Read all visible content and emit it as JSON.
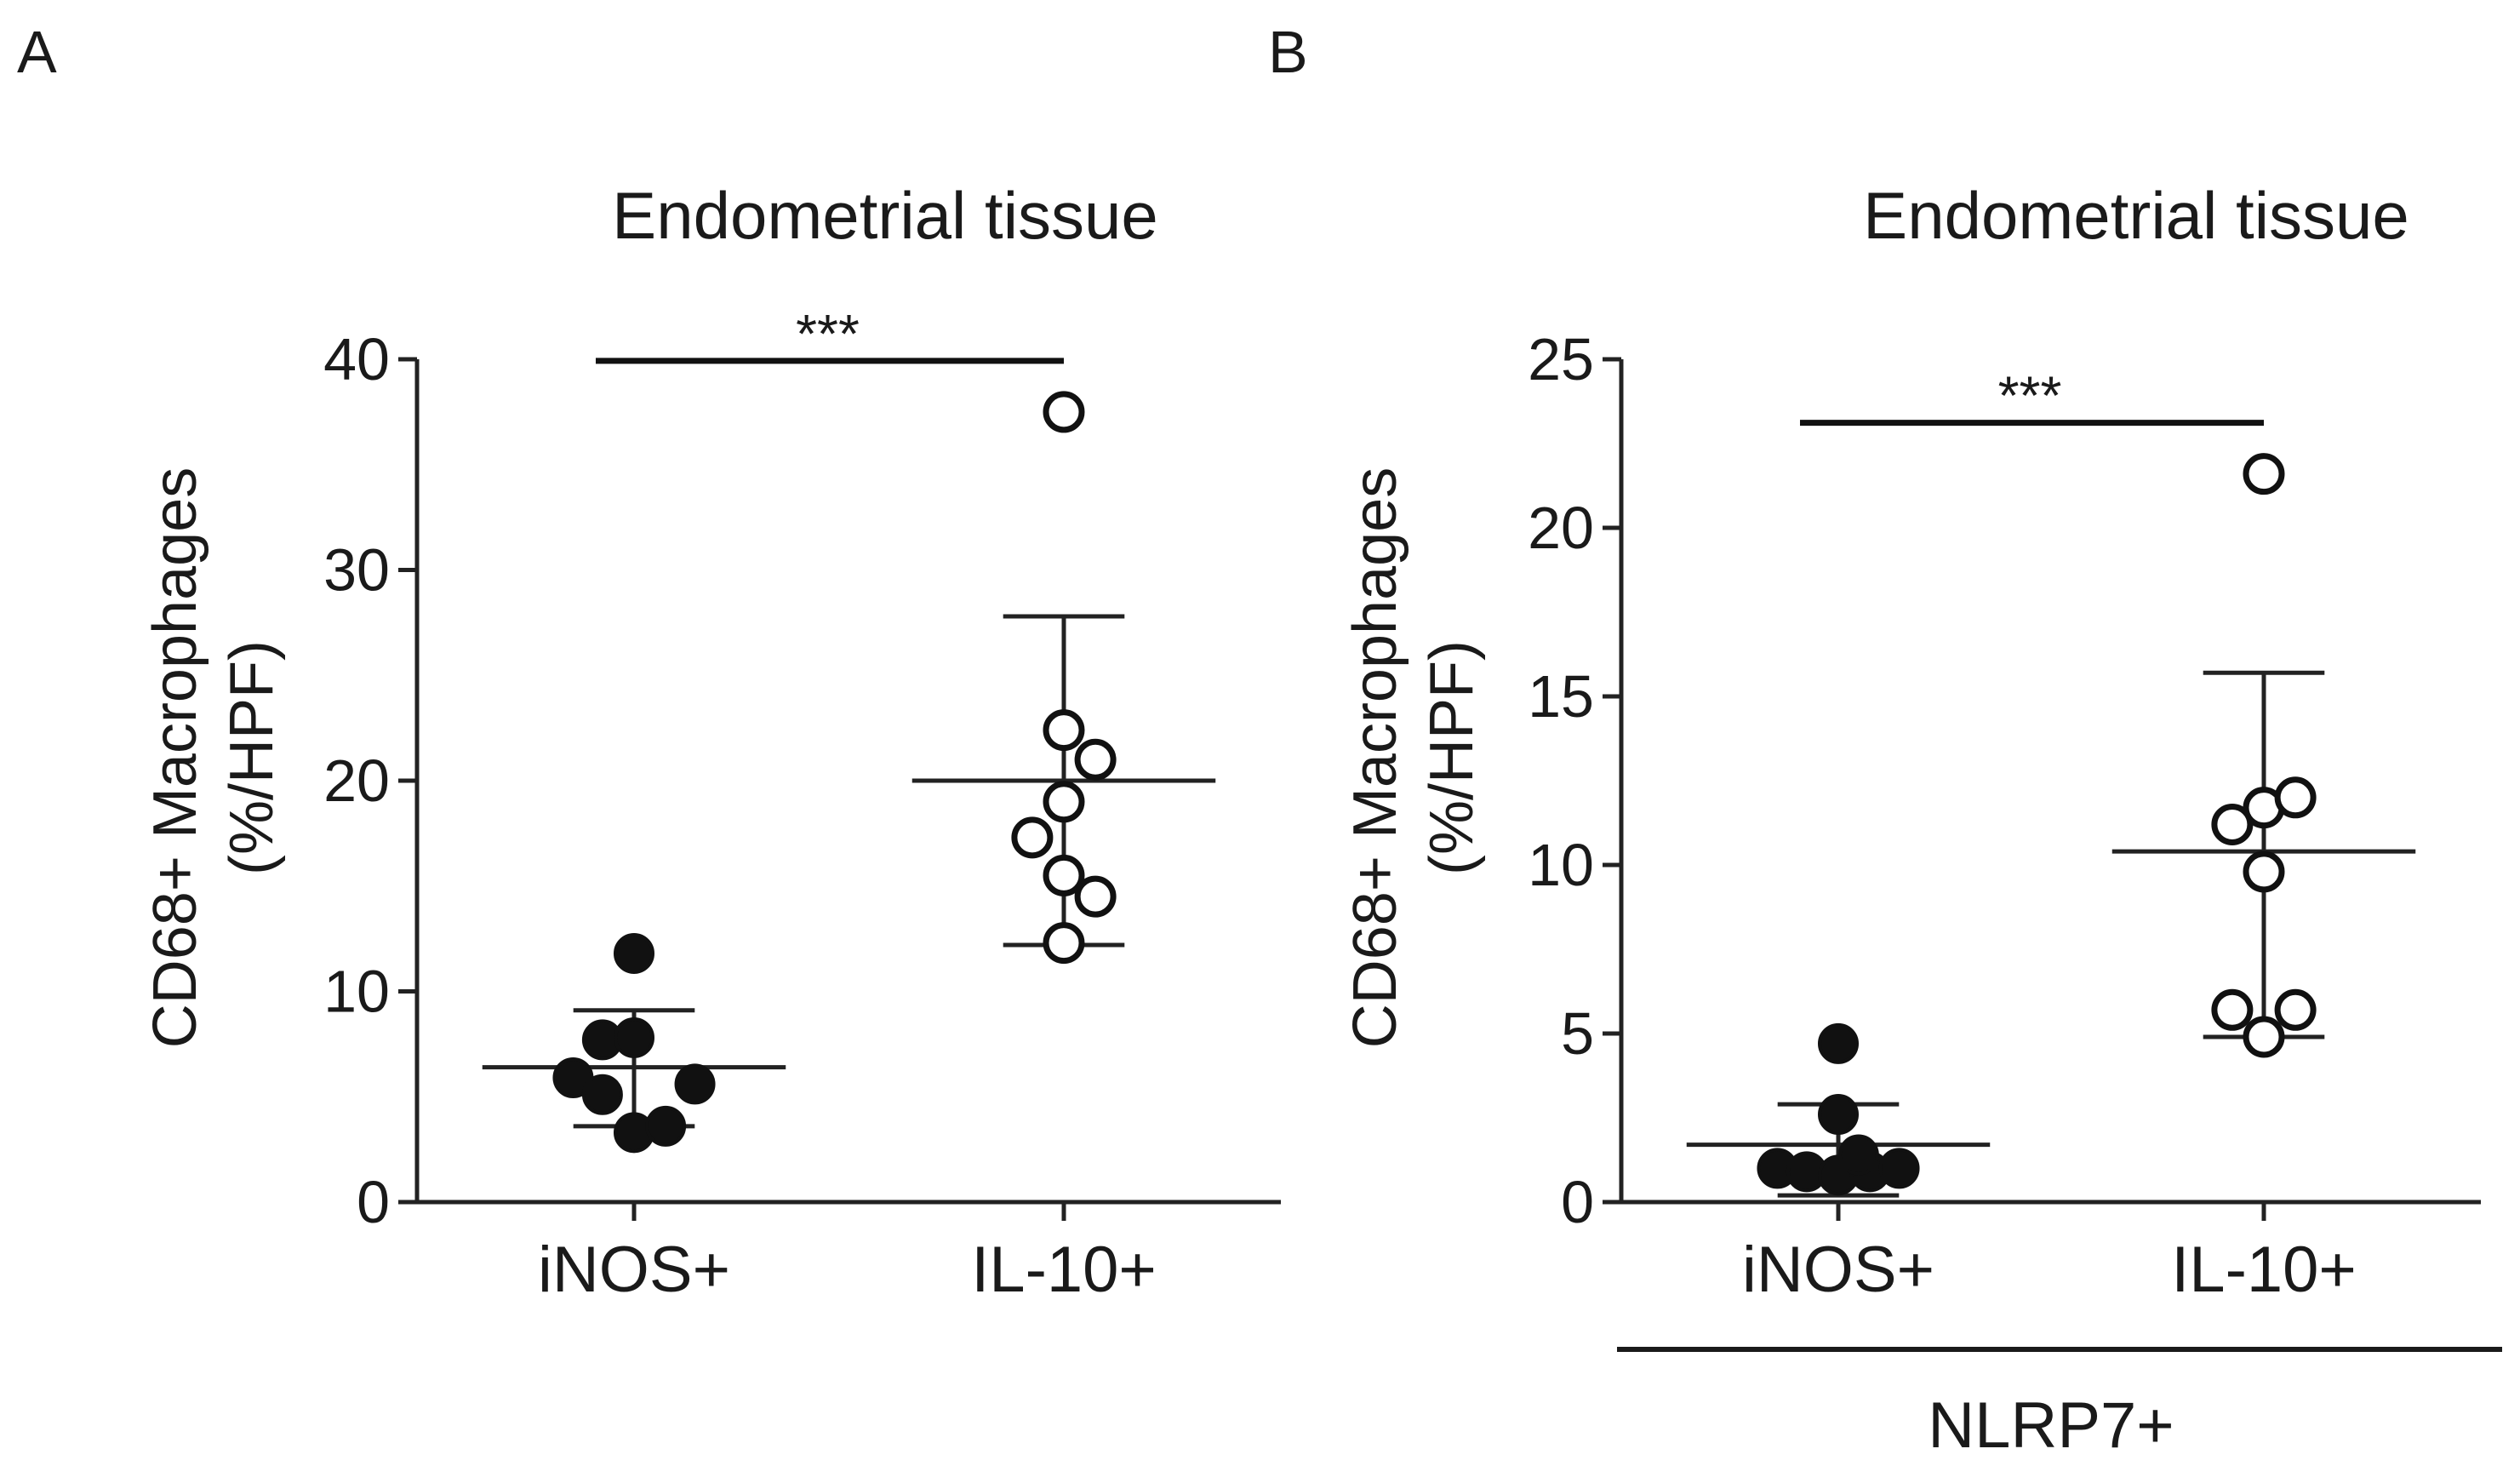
{
  "chart_data": [
    {
      "panel": "A",
      "type": "scatter",
      "title": "Endometrial tissue",
      "ylabel_line1": "CD68+ Macrophages",
      "ylabel_line2": "(%/HPF)",
      "ylim": [
        0,
        40
      ],
      "yticks": [
        0,
        10,
        20,
        30,
        40
      ],
      "categories": [
        "iNOS+",
        "IL-10+"
      ],
      "significance": "***",
      "group_label": "",
      "series": [
        {
          "name": "iNOS+",
          "marker": "filled",
          "points": [
            {
              "dx": 0.0,
              "y": 11.8
            },
            {
              "dx": -0.14,
              "y": 7.7
            },
            {
              "dx": 0.0,
              "y": 7.8
            },
            {
              "dx": -0.27,
              "y": 5.9
            },
            {
              "dx": 0.27,
              "y": 5.6
            },
            {
              "dx": -0.14,
              "y": 5.1
            },
            {
              "dx": 0.0,
              "y": 3.3
            },
            {
              "dx": 0.14,
              "y": 3.6
            }
          ],
          "mean": 6.4,
          "sd_low": 3.6,
          "sd_high": 9.1
        },
        {
          "name": "IL-10+",
          "marker": "open",
          "points": [
            {
              "dx": 0.0,
              "y": 37.5
            },
            {
              "dx": 0.0,
              "y": 22.4
            },
            {
              "dx": 0.14,
              "y": 21.0
            },
            {
              "dx": 0.0,
              "y": 19.0
            },
            {
              "dx": -0.14,
              "y": 17.3
            },
            {
              "dx": 0.0,
              "y": 15.5
            },
            {
              "dx": 0.14,
              "y": 14.5
            },
            {
              "dx": 0.0,
              "y": 12.3
            }
          ],
          "mean": 20.0,
          "sd_low": 12.2,
          "sd_high": 27.8
        }
      ]
    },
    {
      "panel": "B",
      "type": "scatter",
      "title": "Endometrial tissue",
      "ylabel_line1": "CD68+ Macrophages",
      "ylabel_line2": "(%/HPF)",
      "ylim": [
        0,
        25
      ],
      "yticks": [
        0,
        5,
        10,
        15,
        20,
        25
      ],
      "categories": [
        "iNOS+",
        "IL-10+"
      ],
      "significance": "***",
      "group_label": "NLRP7+",
      "series": [
        {
          "name": "iNOS+",
          "marker": "filled",
          "points": [
            {
              "dx": 0.0,
              "y": 4.7
            },
            {
              "dx": 0.0,
              "y": 2.6
            },
            {
              "dx": -0.27,
              "y": 1.0
            },
            {
              "dx": -0.14,
              "y": 0.9
            },
            {
              "dx": 0.0,
              "y": 0.8
            },
            {
              "dx": 0.14,
              "y": 0.9
            },
            {
              "dx": 0.27,
              "y": 1.0
            },
            {
              "dx": 0.09,
              "y": 1.4
            }
          ],
          "mean": 1.7,
          "sd_low": 0.2,
          "sd_high": 2.9
        },
        {
          "name": "IL-10+",
          "marker": "open",
          "points": [
            {
              "dx": 0.0,
              "y": 21.6
            },
            {
              "dx": 0.0,
              "y": 11.7
            },
            {
              "dx": 0.14,
              "y": 12.0
            },
            {
              "dx": -0.14,
              "y": 11.2
            },
            {
              "dx": 0.0,
              "y": 9.8
            },
            {
              "dx": -0.14,
              "y": 5.7
            },
            {
              "dx": 0.14,
              "y": 5.7
            },
            {
              "dx": 0.0,
              "y": 4.9
            }
          ],
          "mean": 10.4,
          "sd_low": 4.9,
          "sd_high": 15.7
        }
      ]
    }
  ]
}
